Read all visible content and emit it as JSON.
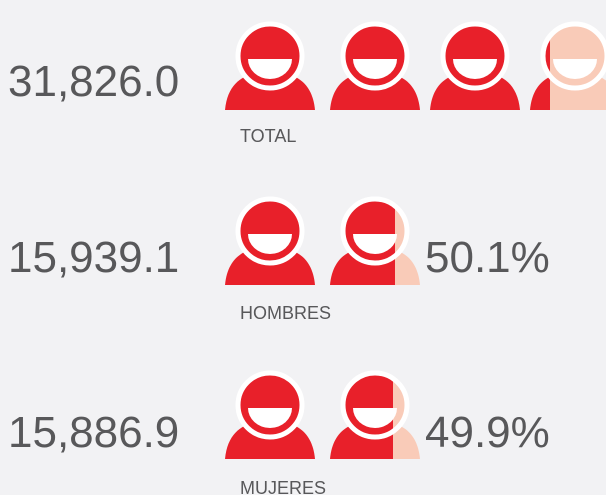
{
  "rows": [
    {
      "value": "31,826.0",
      "label": "TOTAL"
    },
    {
      "value": "15,939.1",
      "label": "HOMBRES",
      "percent": "50.1%"
    },
    {
      "value": "15,886.9",
      "label": "MUJERES",
      "percent": "49.9%"
    }
  ]
}
